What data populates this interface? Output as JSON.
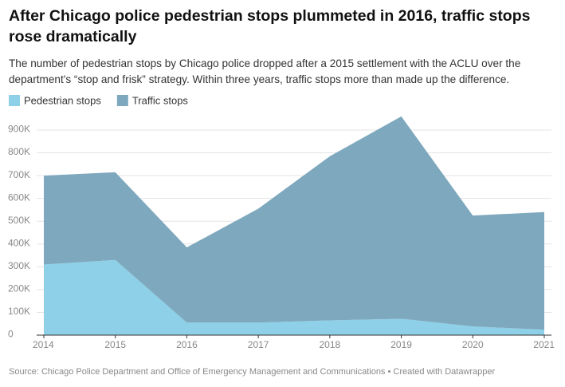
{
  "chart_data": {
    "type": "stacked-area",
    "title": "After Chicago police pedestrian stops plummeted in 2016, traffic stops rose dramatically",
    "subtitle": "The number of pedestrian stops by Chicago police dropped after a 2015 settlement with the ACLU over the department's “stop and frisk” strategy. Within three years, traffic stops more than made up the difference.",
    "source": "Source: Chicago Police Department and Office of Emergency Management and Communications • Created with Datawrapper",
    "x": [
      2014,
      2015,
      2016,
      2017,
      2018,
      2019,
      2020,
      2021
    ],
    "xlim": [
      2014,
      2021
    ],
    "xticks": [
      2014,
      2015,
      2016,
      2017,
      2018,
      2019,
      2020,
      2021
    ],
    "ylim": [
      0,
      960000
    ],
    "yticks": [
      0,
      {
        "value": 100000,
        "label": "100K"
      },
      {
        "value": 200000,
        "label": "200K"
      },
      {
        "value": 300000,
        "label": "300K"
      },
      {
        "value": 400000,
        "label": "400K"
      },
      {
        "value": 500000,
        "label": "500K"
      },
      {
        "value": 600000,
        "label": "600K"
      },
      {
        "value": 700000,
        "label": "700K"
      },
      {
        "value": 800000,
        "label": "800K"
      },
      {
        "value": 900000,
        "label": "900K"
      }
    ],
    "grid": true,
    "series": [
      {
        "name": "Pedestrian stops",
        "color": "#8dd0e8",
        "values": [
          310000,
          330000,
          55000,
          55000,
          65000,
          72000,
          38000,
          24000
        ]
      },
      {
        "name": "Traffic stops",
        "color": "#7ea8bd",
        "values": [
          390000,
          385000,
          330000,
          500000,
          720000,
          888000,
          487000,
          516000
        ]
      }
    ]
  }
}
